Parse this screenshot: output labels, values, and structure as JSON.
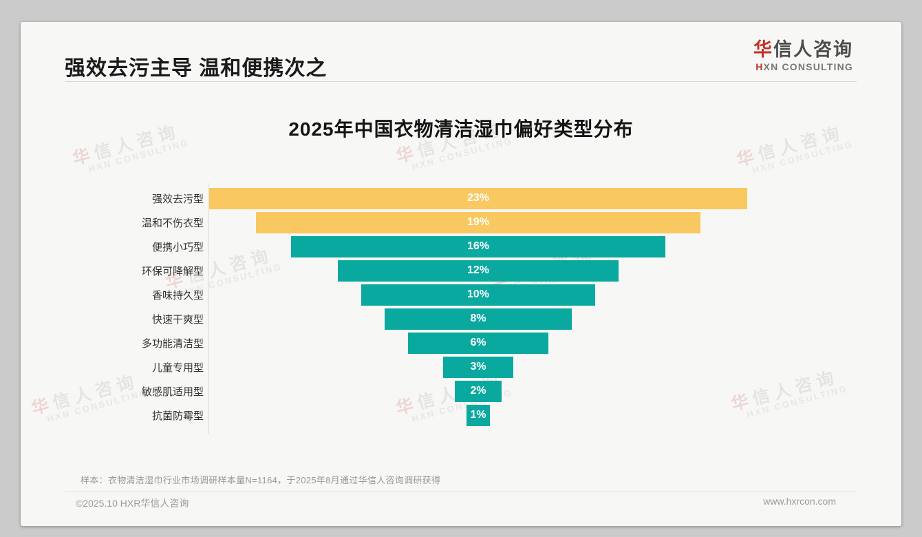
{
  "header": {
    "title": "强效去污主导 温和便携次之"
  },
  "logo": {
    "cn_accent": "华",
    "cn_rest": "信人咨询",
    "en_accent": "H",
    "en_rest": "XN CONSULTING"
  },
  "watermark": {
    "cn_accent": "华",
    "cn_rest": "信人咨询",
    "en": "HXN CONSULTING"
  },
  "chart_data": {
    "type": "bar",
    "variant": "horizontal-centered-funnel",
    "title": "2025年中国衣物清洁湿巾偏好类型分布",
    "categories": [
      "强效去污型",
      "温和不伤衣型",
      "便携小巧型",
      "环保可降解型",
      "香味持久型",
      "快速干爽型",
      "多功能清洁型",
      "儿童专用型",
      "敏感肌适用型",
      "抗菌防霉型"
    ],
    "values": [
      23,
      19,
      16,
      12,
      10,
      8,
      6,
      3,
      2,
      1
    ],
    "value_labels": [
      "23%",
      "19%",
      "16%",
      "12%",
      "10%",
      "8%",
      "6%",
      "3%",
      "2%",
      "1%"
    ],
    "xlim": [
      0,
      23
    ],
    "grid": false,
    "legend": false,
    "colors": {
      "highlight": "#fac860",
      "default": "#0aa9a0",
      "highlight_rows": [
        0,
        1
      ],
      "value_text": "#ffffff"
    }
  },
  "footnote": {
    "text": "样本：衣物清洁湿巾行业市场调研样本量N=1164，于2025年8月通过华信人咨询调研获得"
  },
  "footer": {
    "copyright": "©2025.10 HXR华信人咨询",
    "website": "www.hxrcon.com"
  }
}
